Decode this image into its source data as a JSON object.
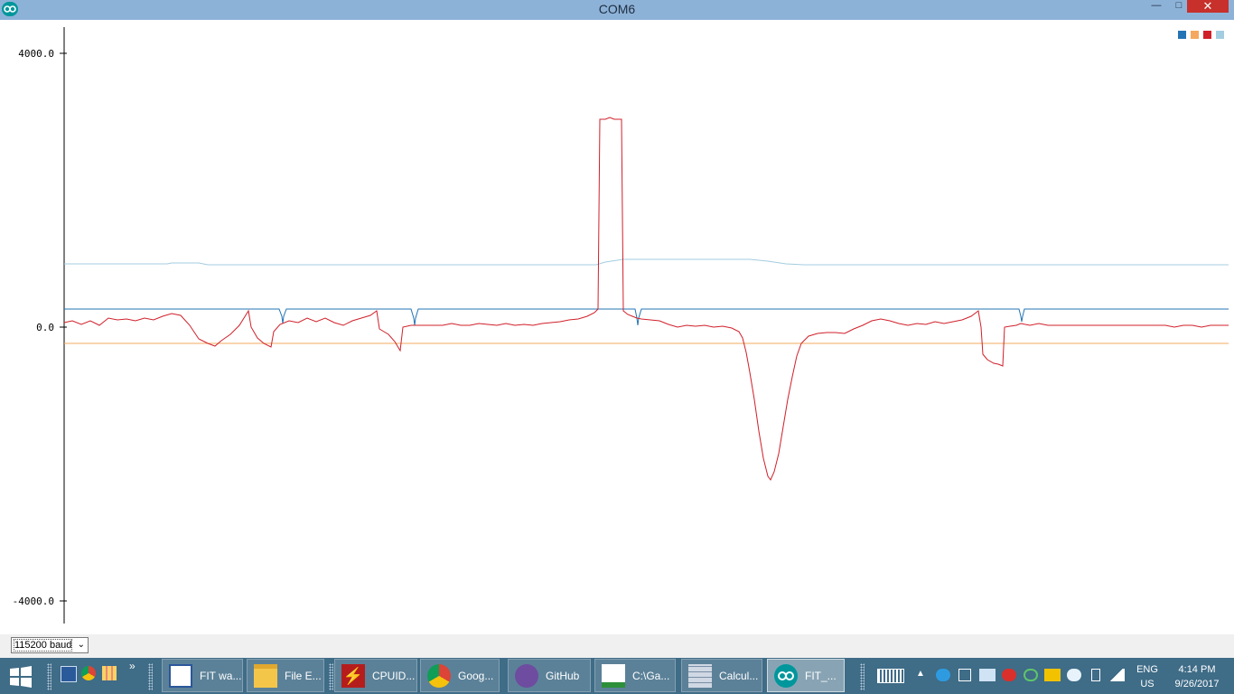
{
  "window": {
    "title": "COM6",
    "minimize_glyph": "—",
    "maximize_glyph": "□",
    "close_glyph": "✕",
    "app_icon": "arduino-icon"
  },
  "plotter": {
    "y_ticks": [
      "4000.0",
      "0.0",
      "-4000.0"
    ],
    "y_range": [
      -4000,
      4000
    ],
    "legend_colors": [
      "#2374b4",
      "#f5a85f",
      "#d0202a",
      "#a3cde0"
    ]
  },
  "chart_data": {
    "type": "line",
    "ylim": [
      -4000,
      4000
    ],
    "yticks": [
      "4000.0",
      "0.0",
      "-4000.0"
    ],
    "x": [
      0,
      20,
      40,
      60,
      80,
      100,
      120,
      140,
      160,
      180,
      200,
      220,
      240,
      260,
      280,
      300,
      320,
      340,
      360,
      380,
      400,
      420,
      440,
      460,
      480,
      500
    ],
    "series": [
      {
        "color": "#2374b4",
        "values": [
          250,
          250,
          250,
          250,
          250,
          250,
          250,
          250,
          250,
          250,
          250,
          250,
          250,
          250,
          250,
          250,
          250,
          250,
          250,
          250,
          250,
          250,
          250,
          250,
          250,
          250
        ]
      },
      {
        "color": "#f5a85f",
        "values": [
          -250,
          -250,
          -250,
          -250,
          -250,
          -250,
          -250,
          -250,
          -250,
          -250,
          -250,
          -250,
          -250,
          -250,
          -250,
          -250,
          -250,
          -250,
          -250,
          -250,
          -250,
          -250,
          -250,
          -250,
          -250,
          -250
        ]
      },
      {
        "color": "#d0202a",
        "values": [
          50,
          50,
          80,
          100,
          180,
          -200,
          220,
          -250,
          50,
          50,
          220,
          -300,
          0,
          0,
          0,
          50,
          150,
          3050,
          100,
          50,
          -20,
          -2150,
          -100,
          0,
          50,
          0
        ]
      },
      {
        "color": "#a3cde0",
        "values": [
          920,
          920,
          920,
          930,
          920,
          920,
          920,
          920,
          920,
          920,
          920,
          920,
          920,
          920,
          920,
          920,
          920,
          980,
          990,
          990,
          920,
          920,
          920,
          920,
          920,
          920
        ]
      }
    ]
  },
  "baud_select": {
    "value": "115200 baud",
    "arrow": "⌄"
  },
  "taskbar": {
    "quick_more": "»",
    "items": [
      {
        "label": "FIT wa...",
        "icon": "document-icon"
      },
      {
        "label": "File E...",
        "icon": "folder-icon"
      },
      {
        "label": "CPUID...",
        "icon": "cpuid-icon"
      },
      {
        "label": "Goog...",
        "icon": "chrome-icon"
      },
      {
        "label": "GitHub",
        "icon": "github-icon"
      },
      {
        "label": "C:\\Ga...",
        "icon": "chart-editor-icon"
      },
      {
        "label": "Calcul...",
        "icon": "calculator-icon"
      },
      {
        "label": "FIT_...",
        "icon": "arduino-icon"
      }
    ],
    "lang_line1": "ENG",
    "lang_line2": "US",
    "time": "4:14 PM",
    "date": "9/26/2017"
  }
}
